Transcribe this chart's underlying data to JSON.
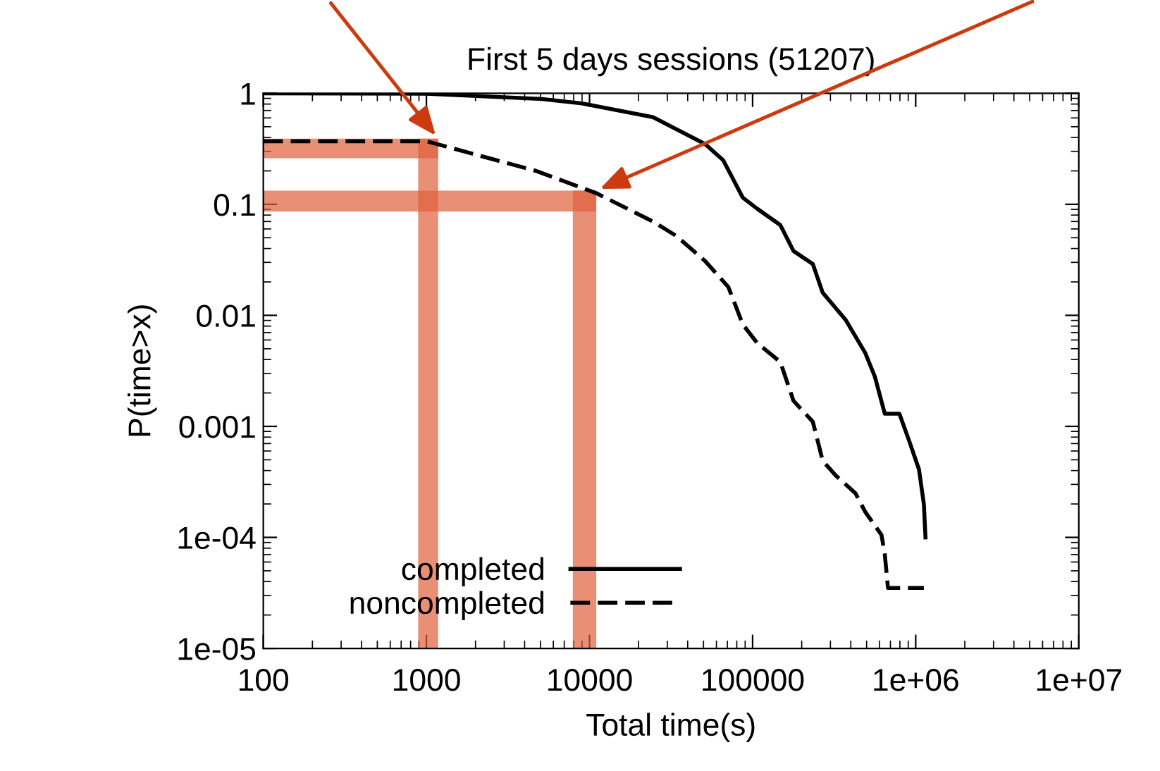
{
  "chart_data": {
    "type": "line",
    "title": "First 5 days sessions (51207)",
    "xlabel": "Total time(s)",
    "ylabel": "P(time>x)",
    "log": "xy",
    "grid": false,
    "legend": "bottom left",
    "xlim": [
      100,
      10000000
    ],
    "xticks": [
      100,
      1000,
      10000,
      100000,
      {
        "value": 1000000,
        "label": "1e+06"
      },
      {
        "value": 10000000,
        "label": "1e+07"
      }
    ],
    "ylim": [
      1e-05,
      1
    ],
    "yticks": [
      1,
      0.1,
      0.01,
      0.001,
      {
        "value": 0.0001,
        "label": "1e-04"
      },
      {
        "value": 1e-05,
        "label": "1e-05"
      }
    ],
    "series": [
      {
        "name": "completed",
        "color": "#000000",
        "line_style": "solid",
        "x": [
          100,
          1000,
          5000,
          9000,
          24500,
          51000,
          66000,
          87000,
          107000,
          148000,
          178000,
          234000,
          269000,
          372000,
          490000,
          562000,
          646000,
          794000,
          912000,
          1047000,
          1122000,
          1148000
        ],
        "values": [
          1,
          0.99,
          0.89,
          0.81,
          0.61,
          0.35,
          0.25,
          0.115,
          0.091,
          0.065,
          0.038,
          0.029,
          0.016,
          0.0091,
          0.0046,
          0.0028,
          0.0013,
          0.0013,
          0.00074,
          0.00041,
          0.0002,
          0.0001
        ]
      },
      {
        "name": "noncompleted",
        "color": "#000000",
        "line_style": "dashed",
        "x": [
          100,
          1000,
          4700,
          11000,
          24500,
          34000,
          51000,
          71000,
          87000,
          107000,
          148000,
          178000,
          234000,
          269000,
          324000,
          427000,
          490000,
          617000,
          646000,
          676000,
          1122000
        ],
        "values": [
          0.37,
          0.37,
          0.2,
          0.126,
          0.07,
          0.052,
          0.031,
          0.018,
          0.0083,
          0.0056,
          0.0038,
          0.0017,
          0.0011,
          0.00049,
          0.00036,
          0.00025,
          0.00017,
          0.000105,
          7.1e-05,
          3.5e-05,
          3.5e-05
        ]
      }
    ],
    "bands": [
      {
        "axis": "x",
        "from": 890,
        "to": 1180,
        "color": "#e0603c"
      },
      {
        "axis": "x",
        "from": 7900,
        "to": 11000,
        "color": "#e0603c"
      },
      {
        "axis": "y",
        "from": 0.26,
        "to": 0.39,
        "color": "#e0603c"
      },
      {
        "axis": "y",
        "from": 0.086,
        "to": 0.133,
        "color": "#e0603c"
      }
    ]
  }
}
